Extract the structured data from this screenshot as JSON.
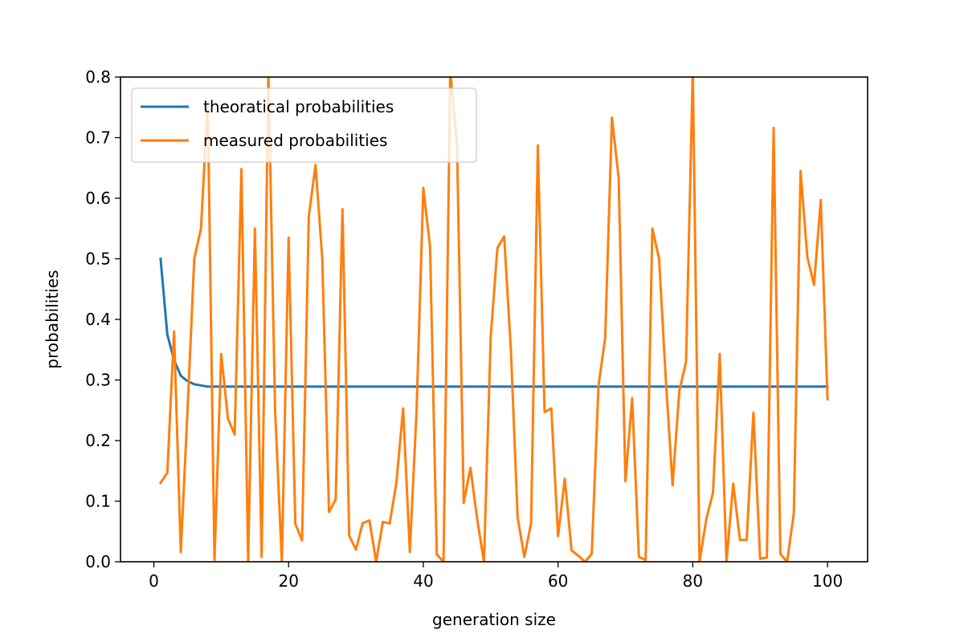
{
  "chart_data": {
    "type": "line",
    "title": "",
    "xlabel": "generation size",
    "ylabel": "probabilities",
    "xlim": [
      -4.95,
      105.95
    ],
    "ylim": [
      0.0,
      0.8
    ],
    "xticks": [
      0,
      20,
      40,
      60,
      80,
      100
    ],
    "yticks": [
      0.0,
      0.1,
      0.2,
      0.3,
      0.4,
      0.5,
      0.6,
      0.7,
      0.8
    ],
    "grid": false,
    "legend_position": "upper-left",
    "series": [
      {
        "name": "theoratical probabilities",
        "color": "#1f77b4",
        "x": [
          1,
          2,
          3,
          4,
          5,
          6,
          7,
          8,
          9,
          10,
          11,
          12,
          13,
          14,
          15,
          16,
          17,
          18,
          19,
          20,
          21,
          22,
          23,
          24,
          25,
          26,
          27,
          28,
          29,
          30,
          31,
          32,
          33,
          34,
          35,
          36,
          37,
          38,
          39,
          40,
          41,
          42,
          43,
          44,
          45,
          46,
          47,
          48,
          49,
          50,
          51,
          52,
          53,
          54,
          55,
          56,
          57,
          58,
          59,
          60,
          61,
          62,
          63,
          64,
          65,
          66,
          67,
          68,
          69,
          70,
          71,
          72,
          73,
          74,
          75,
          76,
          77,
          78,
          79,
          80,
          81,
          82,
          83,
          84,
          85,
          86,
          87,
          88,
          89,
          90,
          91,
          92,
          93,
          94,
          95,
          96,
          97,
          98,
          99,
          100
        ],
        "values": [
          0.5,
          0.375,
          0.333,
          0.307,
          0.298,
          0.293,
          0.291,
          0.289,
          0.289,
          0.289,
          0.289,
          0.289,
          0.289,
          0.289,
          0.289,
          0.289,
          0.289,
          0.289,
          0.289,
          0.289,
          0.289,
          0.289,
          0.289,
          0.289,
          0.289,
          0.289,
          0.289,
          0.289,
          0.289,
          0.289,
          0.289,
          0.289,
          0.289,
          0.289,
          0.289,
          0.289,
          0.289,
          0.289,
          0.289,
          0.289,
          0.289,
          0.289,
          0.289,
          0.289,
          0.289,
          0.289,
          0.289,
          0.289,
          0.289,
          0.289,
          0.289,
          0.289,
          0.289,
          0.289,
          0.289,
          0.289,
          0.289,
          0.289,
          0.289,
          0.289,
          0.289,
          0.289,
          0.289,
          0.289,
          0.289,
          0.289,
          0.289,
          0.289,
          0.289,
          0.289,
          0.289,
          0.289,
          0.289,
          0.289,
          0.289,
          0.289,
          0.289,
          0.289,
          0.289,
          0.289,
          0.289,
          0.289,
          0.289,
          0.289,
          0.289,
          0.289,
          0.289,
          0.289,
          0.289,
          0.289,
          0.289,
          0.289,
          0.289,
          0.289,
          0.289,
          0.289,
          0.289,
          0.289,
          0.289,
          0.289
        ]
      },
      {
        "name": "measured probabilities",
        "color": "#ff7f0e",
        "x": [
          1,
          2,
          3,
          4,
          5,
          6,
          7,
          8,
          9,
          10,
          11,
          12,
          13,
          14,
          15,
          16,
          17,
          18,
          19,
          20,
          21,
          22,
          23,
          24,
          25,
          26,
          27,
          28,
          29,
          30,
          31,
          32,
          33,
          34,
          35,
          36,
          37,
          38,
          39,
          40,
          41,
          42,
          43,
          44,
          45,
          46,
          47,
          48,
          49,
          50,
          51,
          52,
          53,
          54,
          55,
          56,
          57,
          58,
          59,
          60,
          61,
          62,
          63,
          64,
          65,
          66,
          67,
          68,
          69,
          70,
          71,
          72,
          73,
          74,
          75,
          76,
          77,
          78,
          79,
          80,
          81,
          82,
          83,
          84,
          85,
          86,
          87,
          88,
          89,
          90,
          91,
          92,
          93,
          94,
          95,
          96,
          97,
          98,
          99,
          100
        ],
        "values": [
          0.13,
          0.147,
          0.38,
          0.016,
          0.25,
          0.5,
          0.55,
          0.76,
          0.003,
          0.343,
          0.236,
          0.21,
          0.648,
          0.0,
          0.55,
          0.008,
          0.81,
          0.25,
          0.0,
          0.535,
          0.063,
          0.035,
          0.57,
          0.655,
          0.5,
          0.082,
          0.103,
          0.582,
          0.043,
          0.02,
          0.064,
          0.068,
          0.0,
          0.066,
          0.063,
          0.13,
          0.253,
          0.016,
          0.25,
          0.617,
          0.52,
          0.012,
          0.0,
          0.81,
          0.69,
          0.097,
          0.155,
          0.07,
          0.0,
          0.37,
          0.518,
          0.537,
          0.35,
          0.073,
          0.008,
          0.064,
          0.687,
          0.247,
          0.253,
          0.042,
          0.137,
          0.019,
          0.01,
          0.0,
          0.013,
          0.29,
          0.37,
          0.733,
          0.633,
          0.133,
          0.27,
          0.008,
          0.003,
          0.55,
          0.5,
          0.3,
          0.126,
          0.282,
          0.33,
          0.81,
          0.0,
          0.07,
          0.114,
          0.343,
          0.0,
          0.129,
          0.036,
          0.036,
          0.246,
          0.005,
          0.007,
          0.716,
          0.013,
          0.0,
          0.08,
          0.645,
          0.503,
          0.457,
          0.597,
          0.268
        ]
      }
    ]
  }
}
